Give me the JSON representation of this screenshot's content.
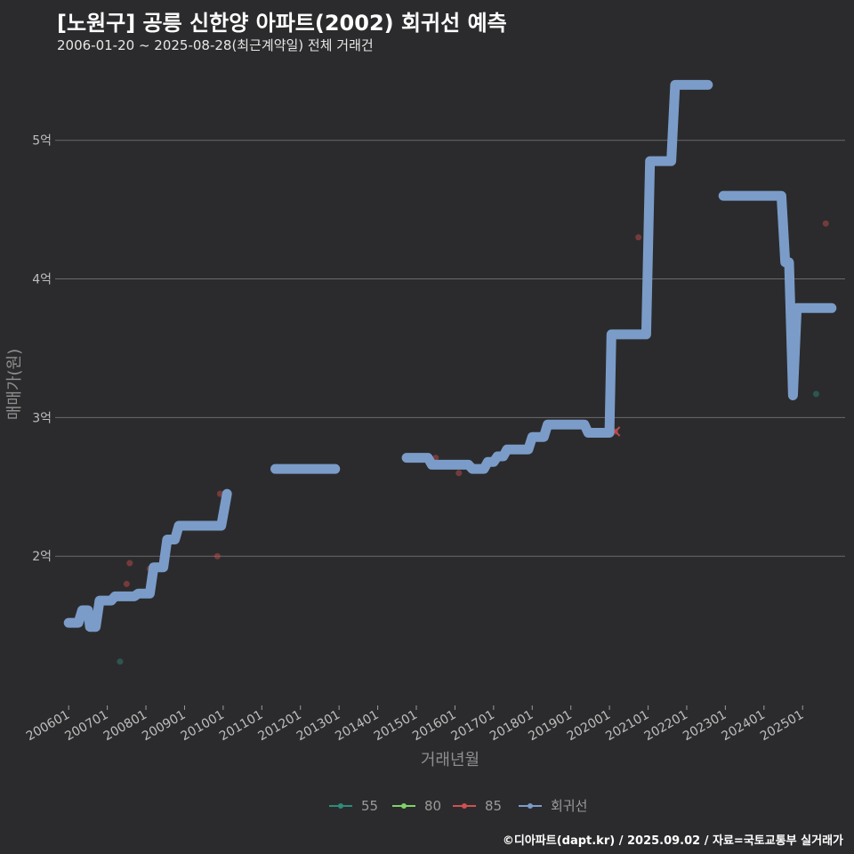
{
  "header": {
    "title": "[노원구] 공릉 신한양 아파트(2002) 회귀선 예측",
    "subtitle": "2006-01-20 ~ 2025-08-28(최근계약일) 전체 거래건"
  },
  "footer": {
    "credit": "©디아파트(dapt.kr) / 2025.09.02 / 자료=국토교통부 실거래가"
  },
  "chart_data": {
    "type": "line",
    "xlabel": "거래년월",
    "ylabel": "매매가(원)",
    "x_ticks": [
      "200601",
      "200701",
      "200801",
      "200901",
      "201001",
      "201101",
      "201201",
      "201301",
      "201401",
      "201501",
      "201601",
      "201701",
      "201801",
      "201901",
      "202001",
      "202101",
      "202201",
      "202301",
      "202401",
      "202501"
    ],
    "y_ticks": [
      {
        "value": 2,
        "label": "2억"
      },
      {
        "value": 3,
        "label": "3억"
      },
      {
        "value": 4,
        "label": "4억"
      },
      {
        "value": 5,
        "label": "5억"
      }
    ],
    "ylim": [
      0.93,
      5.55
    ],
    "xlim": [
      2005.65,
      2026.1
    ],
    "legend_position": "bottom",
    "legend": [
      {
        "name": "55",
        "color": "#2e8b7a"
      },
      {
        "name": "80",
        "color": "#7fd16a"
      },
      {
        "name": "85",
        "color": "#d05050"
      },
      {
        "name": "회귀선",
        "color": "#7b9cc8"
      }
    ],
    "series": [
      {
        "name": "55",
        "color": "#2e8b7a",
        "points": [
          [
            2007.33,
            1.24
          ],
          [
            2025.35,
            3.17
          ]
        ]
      },
      {
        "name": "85",
        "color": "#d05050",
        "points": [
          [
            2007.5,
            1.8
          ],
          [
            2007.58,
            1.95
          ],
          [
            2008.1,
            1.91
          ],
          [
            2009.85,
            2.0
          ],
          [
            2009.92,
            2.45
          ],
          [
            2015.5,
            2.71
          ],
          [
            2016.1,
            2.6
          ],
          [
            2020.15,
            2.9
          ],
          [
            2020.75,
            4.3
          ],
          [
            2025.6,
            4.4
          ]
        ]
      },
      {
        "name": "회귀선",
        "color": "#7b9cc8",
        "segments": [
          [
            [
              2006.0,
              1.52
            ],
            [
              2006.25,
              1.52
            ],
            [
              2006.35,
              1.61
            ],
            [
              2006.5,
              1.61
            ],
            [
              2006.55,
              1.49
            ],
            [
              2006.7,
              1.49
            ],
            [
              2006.8,
              1.68
            ],
            [
              2007.1,
              1.68
            ],
            [
              2007.2,
              1.71
            ],
            [
              2007.7,
              1.71
            ],
            [
              2007.8,
              1.73
            ],
            [
              2008.1,
              1.73
            ],
            [
              2008.2,
              1.92
            ],
            [
              2008.45,
              1.92
            ],
            [
              2008.55,
              2.12
            ],
            [
              2008.75,
              2.12
            ],
            [
              2008.85,
              2.22
            ],
            [
              2009.95,
              2.22
            ],
            [
              2010.1,
              2.45
            ]
          ],
          [
            [
              2011.35,
              2.63
            ],
            [
              2012.9,
              2.63
            ]
          ],
          [
            [
              2014.75,
              2.71
            ],
            [
              2015.3,
              2.71
            ],
            [
              2015.4,
              2.66
            ],
            [
              2016.35,
              2.66
            ],
            [
              2016.45,
              2.63
            ],
            [
              2016.75,
              2.63
            ],
            [
              2016.85,
              2.68
            ],
            [
              2017.0,
              2.68
            ],
            [
              2017.1,
              2.72
            ],
            [
              2017.25,
              2.72
            ],
            [
              2017.35,
              2.77
            ],
            [
              2017.9,
              2.77
            ],
            [
              2018.0,
              2.86
            ],
            [
              2018.3,
              2.86
            ],
            [
              2018.4,
              2.95
            ],
            [
              2019.35,
              2.95
            ],
            [
              2019.45,
              2.89
            ],
            [
              2020.0,
              2.89
            ],
            [
              2020.05,
              3.6
            ],
            [
              2020.95,
              3.6
            ],
            [
              2021.05,
              4.85
            ],
            [
              2021.6,
              4.85
            ],
            [
              2021.7,
              5.4
            ],
            [
              2022.55,
              5.4
            ]
          ],
          [
            [
              2022.95,
              4.6
            ],
            [
              2024.45,
              4.6
            ],
            [
              2024.55,
              4.12
            ],
            [
              2024.65,
              4.12
            ],
            [
              2024.75,
              3.16
            ],
            [
              2024.85,
              3.79
            ],
            [
              2025.75,
              3.79
            ]
          ]
        ]
      }
    ]
  }
}
